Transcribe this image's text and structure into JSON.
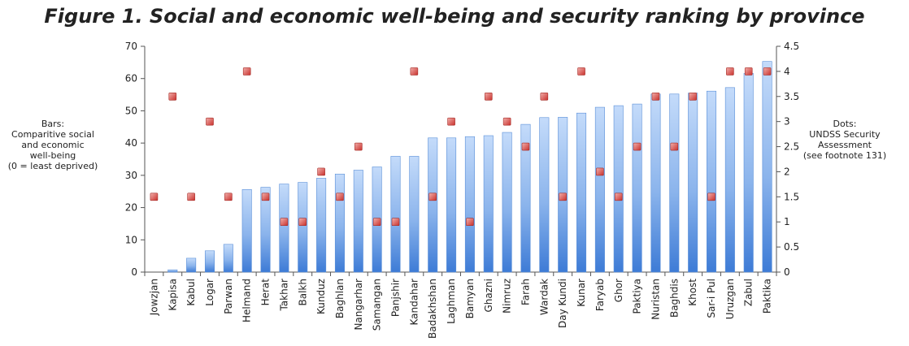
{
  "chart_data": {
    "type": "bar",
    "title": "Figure 1. Social and economic well-being and security ranking by province",
    "categories": [
      "Jowzjan",
      "Kapisa",
      "Kabul",
      "Logar",
      "Parwan",
      "Helmand",
      "Herat",
      "Takhar",
      "Balkh",
      "Kunduz",
      "Baghlan",
      "Nangarhar",
      "Samangan",
      "Panjshir",
      "Kandahar",
      "Badakhshan",
      "Laghman",
      "Bamyan",
      "Ghazni",
      "Nimruz",
      "Farah",
      "Wardak",
      "Day Kundi",
      "Kunar",
      "Faryab",
      "Ghor",
      "Paktiya",
      "Nuristan",
      "Baghdis",
      "Khost",
      "Sar-i Pul",
      "Uruzgan",
      "Zabul",
      "Paktika"
    ],
    "series": [
      {
        "type": "bar",
        "axis": "left",
        "values": [
          0,
          0.7,
          4.3,
          6.6,
          8.6,
          25.6,
          26.3,
          27.3,
          27.8,
          29.1,
          30.4,
          31.6,
          32.6,
          35.9,
          35.9,
          41.6,
          41.6,
          42.0,
          42.3,
          43.3,
          45.8,
          47.9,
          48.0,
          49.3,
          51.1,
          51.6,
          52.1,
          55.2,
          55.2,
          55.5,
          56.1,
          57.2,
          61.6,
          65.3
        ],
        "color": "#8bb4ec"
      },
      {
        "type": "scatter",
        "axis": "right",
        "values": [
          1.5,
          3.5,
          1.5,
          3,
          1.5,
          4,
          1.5,
          1,
          1,
          2,
          1.5,
          2.5,
          1,
          1,
          4,
          1.5,
          3,
          1,
          3.5,
          3,
          2.5,
          3.5,
          1.5,
          4,
          2,
          1.5,
          2.5,
          3.5,
          2.5,
          3.5,
          1.5,
          4,
          4,
          4
        ],
        "color": "#d9534f"
      }
    ],
    "ylabel": [
      "Bars:",
      "Comparitive social",
      "and economic",
      "well-being",
      "(0 = least deprived)"
    ],
    "y2label": [
      "Dots:",
      "UNDSS Security",
      "Assessment",
      "(see footnote 131)"
    ],
    "ylim": [
      0,
      70
    ],
    "yticks": [
      0,
      10,
      20,
      30,
      40,
      50,
      60,
      70
    ],
    "y2lim": [
      0,
      4.5
    ],
    "y2ticks": [
      0,
      0.5,
      1,
      1.5,
      2,
      2.5,
      3,
      3.5,
      4,
      4.5
    ],
    "grid": false,
    "legend": "none"
  }
}
